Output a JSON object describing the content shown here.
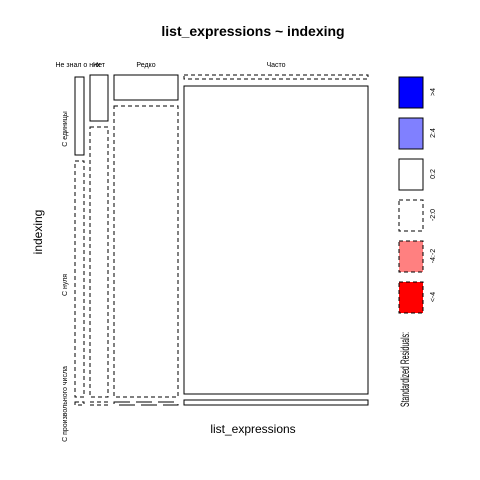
{
  "chart_data": {
    "type": "mosaic",
    "title": "list_expressions ~ indexing",
    "xlabel": "list_expressions",
    "ylabel": "indexing",
    "x_categories": [
      "Не знал о них",
      "Нет",
      "Редко",
      "Часто"
    ],
    "y_categories": [
      "С единицы",
      "С нуля",
      "С произвольного числа"
    ],
    "cells": [
      {
        "x": "Не знал о них",
        "y": "С единицы",
        "residual_class": "0:2"
      },
      {
        "x": "Не знал о них",
        "y": "С нуля",
        "residual_class": "-2:0"
      },
      {
        "x": "Не знал о них",
        "y": "С произвольного числа",
        "residual_class": "-2:0"
      },
      {
        "x": "Нет",
        "y": "С единицы",
        "residual_class": "0:2"
      },
      {
        "x": "Нет",
        "y": "С нуля",
        "residual_class": "-2:0"
      },
      {
        "x": "Нет",
        "y": "С произвольного числа",
        "residual_class": "-2:0"
      },
      {
        "x": "Редко",
        "y": "С единицы",
        "residual_class": "0:2"
      },
      {
        "x": "Редко",
        "y": "С нуля",
        "residual_class": "-2:0"
      },
      {
        "x": "Редко",
        "y": "С произвольного числа",
        "residual_class": "-2:0"
      },
      {
        "x": "Часто",
        "y": "С единицы",
        "residual_class": "-2:0"
      },
      {
        "x": "Часто",
        "y": "С нуля",
        "residual_class": "0:2"
      },
      {
        "x": "Часто",
        "y": "С произвольного числа",
        "residual_class": "0:2"
      }
    ],
    "legend": {
      "title": "Standardized Residuals:",
      "position": "right",
      "items": [
        {
          "label": ">4",
          "fill": "#0000ff",
          "line": "solid"
        },
        {
          "label": "2:4",
          "fill": "#8080ff",
          "line": "solid"
        },
        {
          "label": "0:2",
          "fill": "#ffffff",
          "line": "solid"
        },
        {
          "label": "-2:0",
          "fill": "#ffffff",
          "line": "dashed"
        },
        {
          "label": "-4:-2",
          "fill": "#ff8080",
          "line": "dashed"
        },
        {
          "label": "<-4",
          "fill": "#ff0000",
          "line": "dashed"
        }
      ]
    }
  }
}
